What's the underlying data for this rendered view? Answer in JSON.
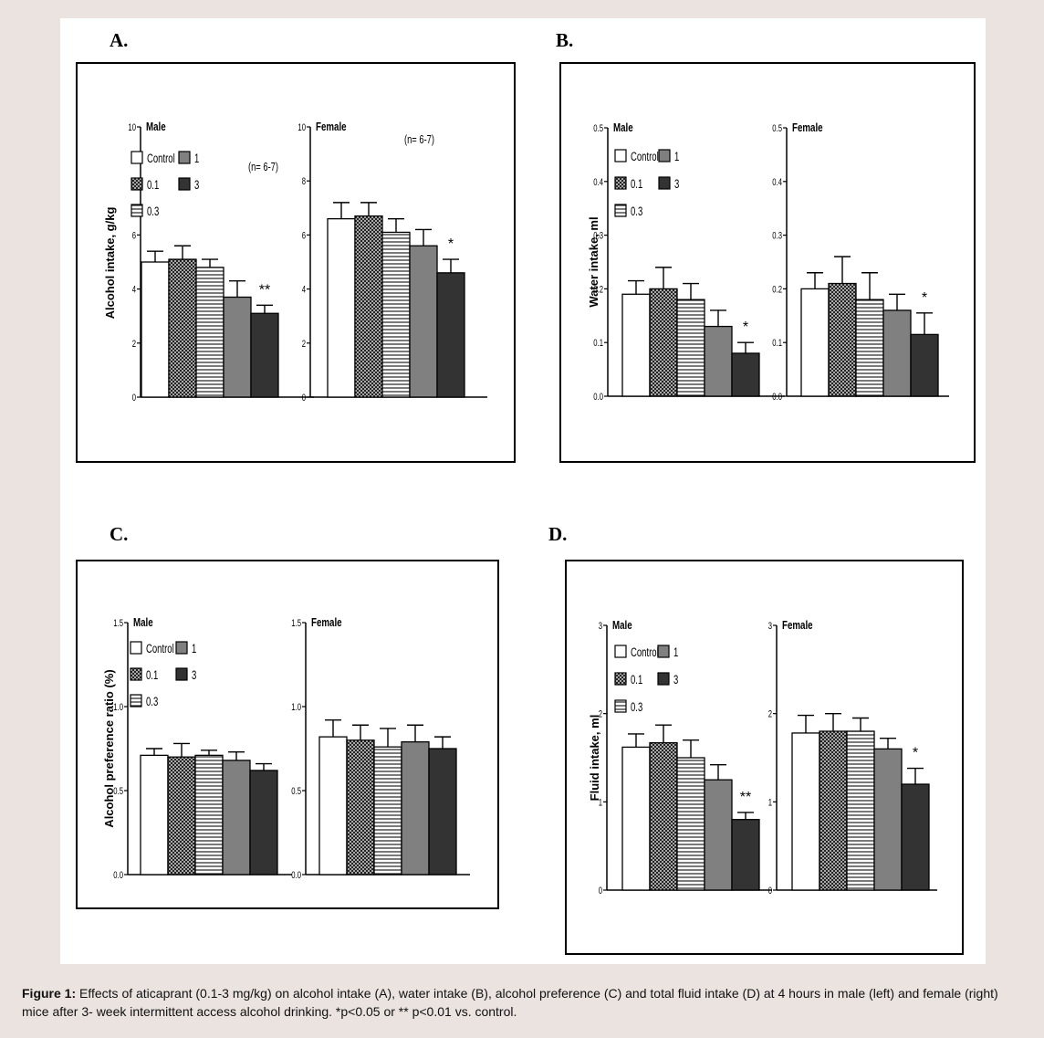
{
  "figure": {
    "caption_lead": "Figure 1:",
    "caption_text": "Effects of aticaprant (0.1-3 mg/kg) on alcohol intake (A), water intake (B), alcohol preference (C) and total fluid intake (D) at 4 hours in male (left) and female (right) mice after 3- week intermittent access alcohol drinking. *p<0.05 or ** p<0.01 vs. control."
  },
  "legend": {
    "entries": [
      {
        "label": "Control",
        "pattern": "white"
      },
      {
        "label": "0.1",
        "pattern": "crosshatch"
      },
      {
        "label": "0.3",
        "pattern": "horizontal"
      },
      {
        "label": "1",
        "pattern": "grey"
      },
      {
        "label": "3",
        "pattern": "dark"
      }
    ]
  },
  "colors": {
    "background": "#eae3df",
    "grey_bar": "#808080",
    "dark_bar": "#333333",
    "hatch": "#222222"
  },
  "chart_data": [
    {
      "panel": "A.",
      "type": "bar",
      "ylabel": "Alcohol intake, g/kg",
      "ylim": [
        0,
        10
      ],
      "yticks": [
        "0",
        "2",
        "4",
        "6",
        "8",
        "10"
      ],
      "annotation": "(n= 6-7)",
      "legend_shown": true,
      "groups": [
        {
          "name": "Male",
          "categories": [
            "Control",
            "0.1",
            "0.3",
            "1",
            "3"
          ],
          "values": [
            5.0,
            5.1,
            4.8,
            3.7,
            3.1
          ],
          "errors": [
            0.4,
            0.5,
            0.3,
            0.6,
            0.3
          ],
          "marks": [
            "",
            "",
            "",
            "",
            "**"
          ]
        },
        {
          "name": "Female",
          "categories": [
            "Control",
            "0.1",
            "0.3",
            "1",
            "3"
          ],
          "values": [
            6.6,
            6.7,
            6.1,
            5.6,
            4.6
          ],
          "errors": [
            0.6,
            0.5,
            0.5,
            0.6,
            0.5
          ],
          "marks": [
            "",
            "",
            "",
            "",
            "*"
          ]
        }
      ]
    },
    {
      "panel": "B.",
      "type": "bar",
      "ylabel": "Water intake, ml",
      "ylim": [
        0,
        0.5
      ],
      "yticks": [
        "0.0",
        "0.1",
        "0.2",
        "0.3",
        "0.4",
        "0.5"
      ],
      "annotation": "",
      "legend_shown": true,
      "groups": [
        {
          "name": "Male",
          "categories": [
            "Control",
            "0.1",
            "0.3",
            "1",
            "3"
          ],
          "values": [
            0.19,
            0.2,
            0.18,
            0.13,
            0.08
          ],
          "errors": [
            0.025,
            0.04,
            0.03,
            0.03,
            0.02
          ],
          "marks": [
            "",
            "",
            "",
            "",
            "*"
          ]
        },
        {
          "name": "Female",
          "categories": [
            "Control",
            "0.1",
            "0.3",
            "1",
            "3"
          ],
          "values": [
            0.2,
            0.21,
            0.18,
            0.16,
            0.115
          ],
          "errors": [
            0.03,
            0.05,
            0.05,
            0.03,
            0.04
          ],
          "marks": [
            "",
            "",
            "",
            "",
            "*"
          ]
        }
      ]
    },
    {
      "panel": "C.",
      "type": "bar",
      "ylabel": "Alcohol preference ratio (%)",
      "ylim": [
        0,
        1.5
      ],
      "yticks": [
        "0.0",
        "0.5",
        "1.0",
        "1.5"
      ],
      "annotation": "",
      "legend_shown": true,
      "groups": [
        {
          "name": "Male",
          "categories": [
            "Control",
            "0.1",
            "0.3",
            "1",
            "3"
          ],
          "values": [
            0.71,
            0.7,
            0.71,
            0.68,
            0.62
          ],
          "errors": [
            0.04,
            0.08,
            0.03,
            0.05,
            0.04
          ],
          "marks": [
            "",
            "",
            "",
            "",
            ""
          ]
        },
        {
          "name": "Female",
          "categories": [
            "Control",
            "0.1",
            "0.3",
            "1",
            "3"
          ],
          "values": [
            0.82,
            0.8,
            0.76,
            0.79,
            0.75
          ],
          "errors": [
            0.1,
            0.09,
            0.11,
            0.1,
            0.07
          ],
          "marks": [
            "",
            "",
            "",
            "",
            ""
          ]
        }
      ]
    },
    {
      "panel": "D.",
      "type": "bar",
      "ylabel": "Fluid intake, ml",
      "ylim": [
        0,
        3
      ],
      "yticks": [
        "0",
        "1",
        "2",
        "3"
      ],
      "annotation": "",
      "legend_shown": true,
      "groups": [
        {
          "name": "Male",
          "categories": [
            "Control",
            "0.1",
            "0.3",
            "1",
            "3"
          ],
          "values": [
            1.62,
            1.67,
            1.5,
            1.25,
            0.8
          ],
          "errors": [
            0.15,
            0.2,
            0.2,
            0.17,
            0.08
          ],
          "marks": [
            "",
            "",
            "",
            "",
            "**"
          ]
        },
        {
          "name": "Female",
          "categories": [
            "Control",
            "0.1",
            "0.3",
            "1",
            "3"
          ],
          "values": [
            1.78,
            1.8,
            1.8,
            1.6,
            1.2
          ],
          "errors": [
            0.2,
            0.2,
            0.15,
            0.12,
            0.18
          ],
          "marks": [
            "",
            "",
            "",
            "",
            "*"
          ]
        }
      ]
    }
  ]
}
